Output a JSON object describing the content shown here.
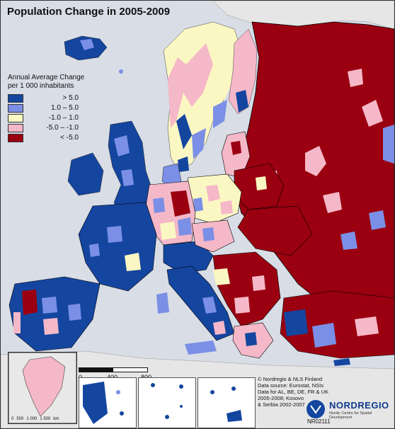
{
  "title": "Population Change in 2005-2009",
  "legend": {
    "heading_line1": "Annual Average Change",
    "heading_line2": "per 1 000 inhabitants",
    "classes": [
      {
        "label": ">  5.0",
        "color": "#1446a0"
      },
      {
        "label": "1.0 –  5.0",
        "color": "#7b8fe6"
      },
      {
        "label": "-1.0 –  1.0",
        "color": "#fbf7c3"
      },
      {
        "label": "-5.0 – -1.0",
        "color": "#f5b8c8"
      },
      {
        "label": "< -5.0",
        "color": "#9a0010"
      }
    ]
  },
  "scale_main": {
    "ticks": [
      "0",
      "400",
      "800"
    ],
    "unit": "km"
  },
  "scale_greenland": {
    "ticks": [
      "0",
      "500",
      "1 000",
      "1 500"
    ],
    "unit": "km"
  },
  "credits": {
    "line1": "© Nordregio & NLS Finland",
    "line2": "Data source: Eurostat, NSIs",
    "line3": "Data for AL, BE, DE, FR & UK",
    "line4": "2005-2008; Kosovo",
    "line5": "& Serbia 2002-2007"
  },
  "logo": {
    "name": "NORDREGIO",
    "tagline": "Nordic Centre for Spatial Development"
  },
  "map_code": "NR02111",
  "colors": {
    "sea": "#d8dde6",
    "nonstudy": "#e6e6e6",
    "border": "#000000"
  }
}
